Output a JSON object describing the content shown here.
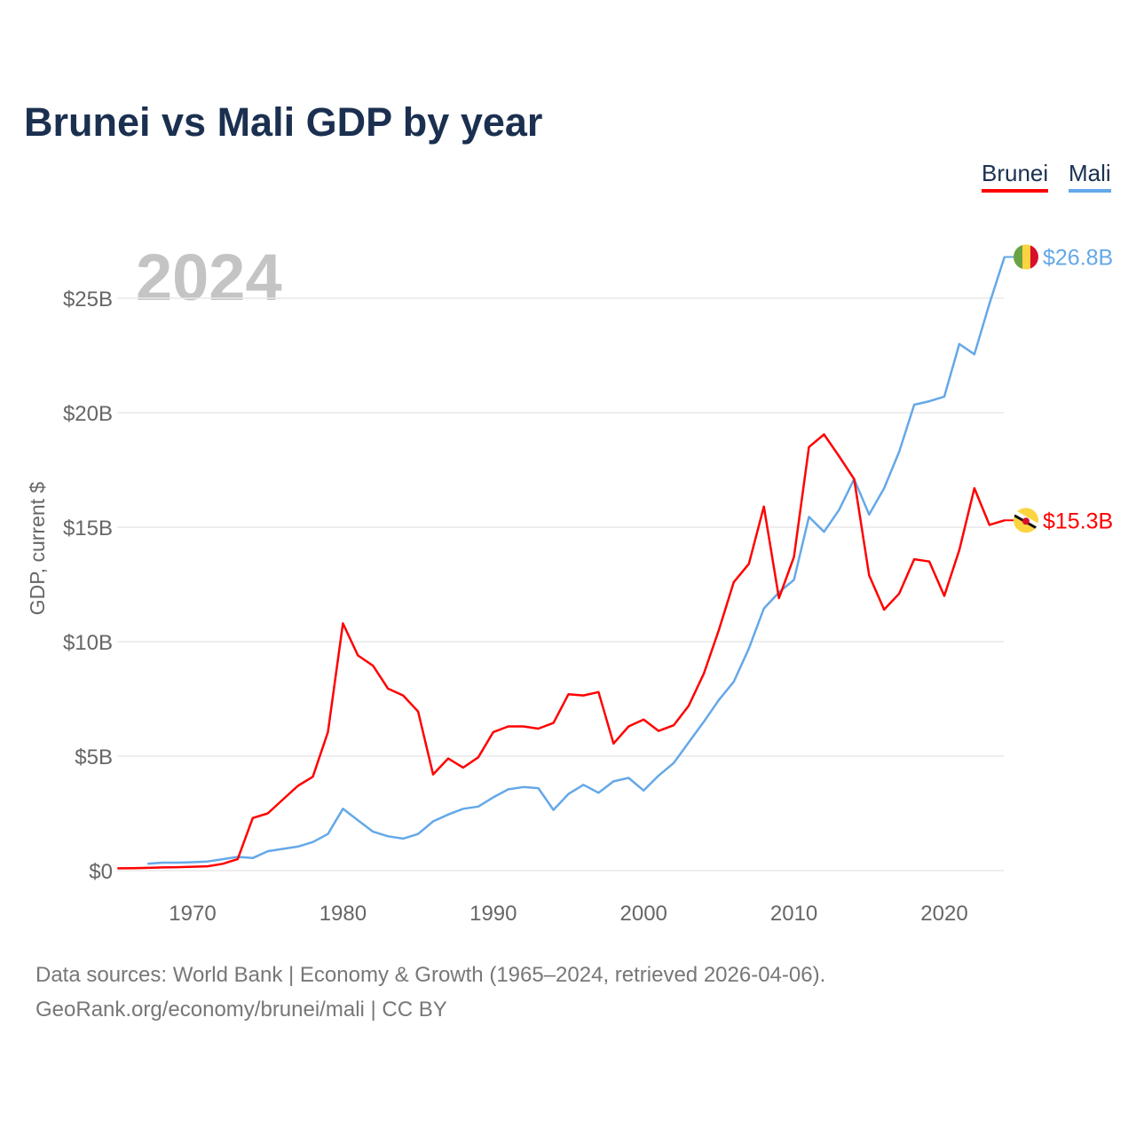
{
  "chart_data": {
    "type": "line",
    "title": "Brunei vs Mali GDP by year",
    "xlabel": "",
    "ylabel": "GDP, current $",
    "xlim": [
      1965,
      2024
    ],
    "ylim": [
      0,
      27
    ],
    "x_ticks": [
      1970,
      1980,
      1990,
      2000,
      2010,
      2020
    ],
    "y_ticks": [
      0,
      5,
      10,
      15,
      20,
      25
    ],
    "y_tick_labels": [
      "$0",
      "$5B",
      "$10B",
      "$15B",
      "$20B",
      "$25B"
    ],
    "grid": true,
    "legend_position": "top-right",
    "year_label": "2024",
    "series": [
      {
        "name": "Brunei",
        "color": "#ff0000",
        "end_label": "$15.3B",
        "start_year": 1965,
        "values": [
          0.1,
          0.11,
          0.12,
          0.14,
          0.15,
          0.17,
          0.19,
          0.3,
          0.5,
          2.3,
          2.5,
          3.1,
          3.7,
          4.1,
          6.05,
          10.8,
          9.4,
          8.95,
          7.95,
          7.65,
          6.95,
          4.2,
          4.9,
          4.5,
          4.95,
          6.05,
          6.3,
          6.3,
          6.2,
          6.45,
          7.7,
          7.65,
          7.8,
          5.55,
          6.3,
          6.6,
          6.1,
          6.35,
          7.2,
          8.6,
          10.5,
          12.6,
          13.4,
          15.9,
          11.9,
          13.7,
          18.5,
          19.05,
          18.1,
          17.1,
          12.9,
          11.4,
          12.1,
          13.6,
          13.5,
          12.0,
          14.0,
          16.7,
          15.1,
          15.3
        ]
      },
      {
        "name": "Mali",
        "color": "#64a8e8",
        "end_label": "$26.8B",
        "start_year": 1967,
        "values": [
          0.3,
          0.35,
          0.35,
          0.37,
          0.4,
          0.5,
          0.6,
          0.55,
          0.85,
          0.95,
          1.05,
          1.25,
          1.6,
          2.7,
          2.2,
          1.7,
          1.5,
          1.4,
          1.6,
          2.15,
          2.45,
          2.7,
          2.8,
          3.2,
          3.55,
          3.65,
          3.6,
          2.65,
          3.35,
          3.75,
          3.4,
          3.9,
          4.05,
          3.5,
          4.15,
          4.7,
          5.6,
          6.5,
          7.45,
          8.25,
          9.7,
          11.45,
          12.15,
          12.7,
          15.45,
          14.8,
          15.75,
          17.1,
          15.55,
          16.7,
          18.3,
          20.35,
          20.5,
          20.7,
          23.0,
          22.55,
          24.75,
          26.8
        ]
      }
    ]
  },
  "footer": {
    "line1": "Data sources: World Bank | Economy & Growth (1965–2024, retrieved 2026-04-06).",
    "line2": "GeoRank.org/economy/brunei/mali | CC BY"
  }
}
